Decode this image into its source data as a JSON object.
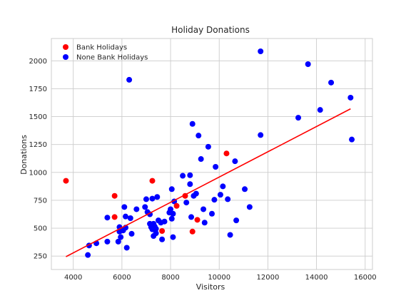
{
  "chart_data": {
    "type": "scatter",
    "title": "Holiday Donations",
    "xlabel": "Visitors",
    "ylabel": "Donations",
    "xlim": [
      3100,
      16300
    ],
    "ylim": [
      130,
      2200
    ],
    "xticks": [
      4000,
      6000,
      8000,
      10000,
      12000,
      14000,
      16000
    ],
    "yticks": [
      250,
      500,
      750,
      1000,
      1250,
      1500,
      1750,
      2000
    ],
    "grid": true,
    "legend_position": "top-left",
    "colors": {
      "bank": "#ff0000",
      "none": "#0000ff",
      "fit": "#ff0000",
      "grid": "#cccccc",
      "spine": "#cccccc"
    },
    "series": [
      {
        "name": "Bank Holidays",
        "color": "#ff0000",
        "points": [
          [
            3700,
            925
          ],
          [
            5700,
            790
          ],
          [
            5700,
            600
          ],
          [
            7250,
            925
          ],
          [
            7650,
            475
          ],
          [
            8250,
            700
          ],
          [
            8600,
            790
          ],
          [
            8900,
            470
          ],
          [
            9100,
            575
          ],
          [
            10300,
            1170
          ]
        ]
      },
      {
        "name": "None Bank Holidays",
        "color": "#0000ff",
        "points": [
          [
            4600,
            260
          ],
          [
            4650,
            345
          ],
          [
            4950,
            365
          ],
          [
            5400,
            380
          ],
          [
            5400,
            595
          ],
          [
            5850,
            380
          ],
          [
            5900,
            470
          ],
          [
            5900,
            510
          ],
          [
            5950,
            420
          ],
          [
            6050,
            480
          ],
          [
            6100,
            690
          ],
          [
            6150,
            605
          ],
          [
            6150,
            505
          ],
          [
            6200,
            325
          ],
          [
            6300,
            1830
          ],
          [
            6350,
            590
          ],
          [
            6400,
            450
          ],
          [
            6600,
            670
          ],
          [
            6950,
            690
          ],
          [
            7000,
            760
          ],
          [
            7050,
            645
          ],
          [
            7150,
            625
          ],
          [
            7150,
            540
          ],
          [
            7200,
            510
          ],
          [
            7250,
            490
          ],
          [
            7250,
            765
          ],
          [
            7300,
            540
          ],
          [
            7300,
            430
          ],
          [
            7350,
            515
          ],
          [
            7400,
            455
          ],
          [
            7400,
            495
          ],
          [
            7450,
            780
          ],
          [
            7500,
            570
          ],
          [
            7600,
            550
          ],
          [
            7650,
            400
          ],
          [
            7750,
            560
          ],
          [
            7950,
            640
          ],
          [
            8000,
            670
          ],
          [
            8050,
            585
          ],
          [
            8050,
            850
          ],
          [
            8100,
            630
          ],
          [
            8100,
            420
          ],
          [
            8150,
            740
          ],
          [
            8500,
            970
          ],
          [
            8650,
            730
          ],
          [
            8800,
            975
          ],
          [
            8800,
            895
          ],
          [
            8850,
            600
          ],
          [
            8900,
            1435
          ],
          [
            8950,
            790
          ],
          [
            9050,
            810
          ],
          [
            9150,
            1330
          ],
          [
            9250,
            1120
          ],
          [
            9350,
            670
          ],
          [
            9400,
            550
          ],
          [
            9550,
            1230
          ],
          [
            9700,
            630
          ],
          [
            9800,
            755
          ],
          [
            9850,
            1050
          ],
          [
            10050,
            800
          ],
          [
            10150,
            875
          ],
          [
            10350,
            760
          ],
          [
            10450,
            440
          ],
          [
            10650,
            1100
          ],
          [
            10700,
            570
          ],
          [
            11050,
            850
          ],
          [
            11250,
            690
          ],
          [
            11700,
            2085
          ],
          [
            11700,
            1335
          ],
          [
            13250,
            1490
          ],
          [
            13650,
            1970
          ],
          [
            14150,
            1560
          ],
          [
            14600,
            1805
          ],
          [
            15400,
            1670
          ],
          [
            15450,
            1295
          ]
        ]
      }
    ],
    "fit_line": {
      "from": [
        3700,
        245
      ],
      "to": [
        15400,
        1570
      ]
    }
  }
}
